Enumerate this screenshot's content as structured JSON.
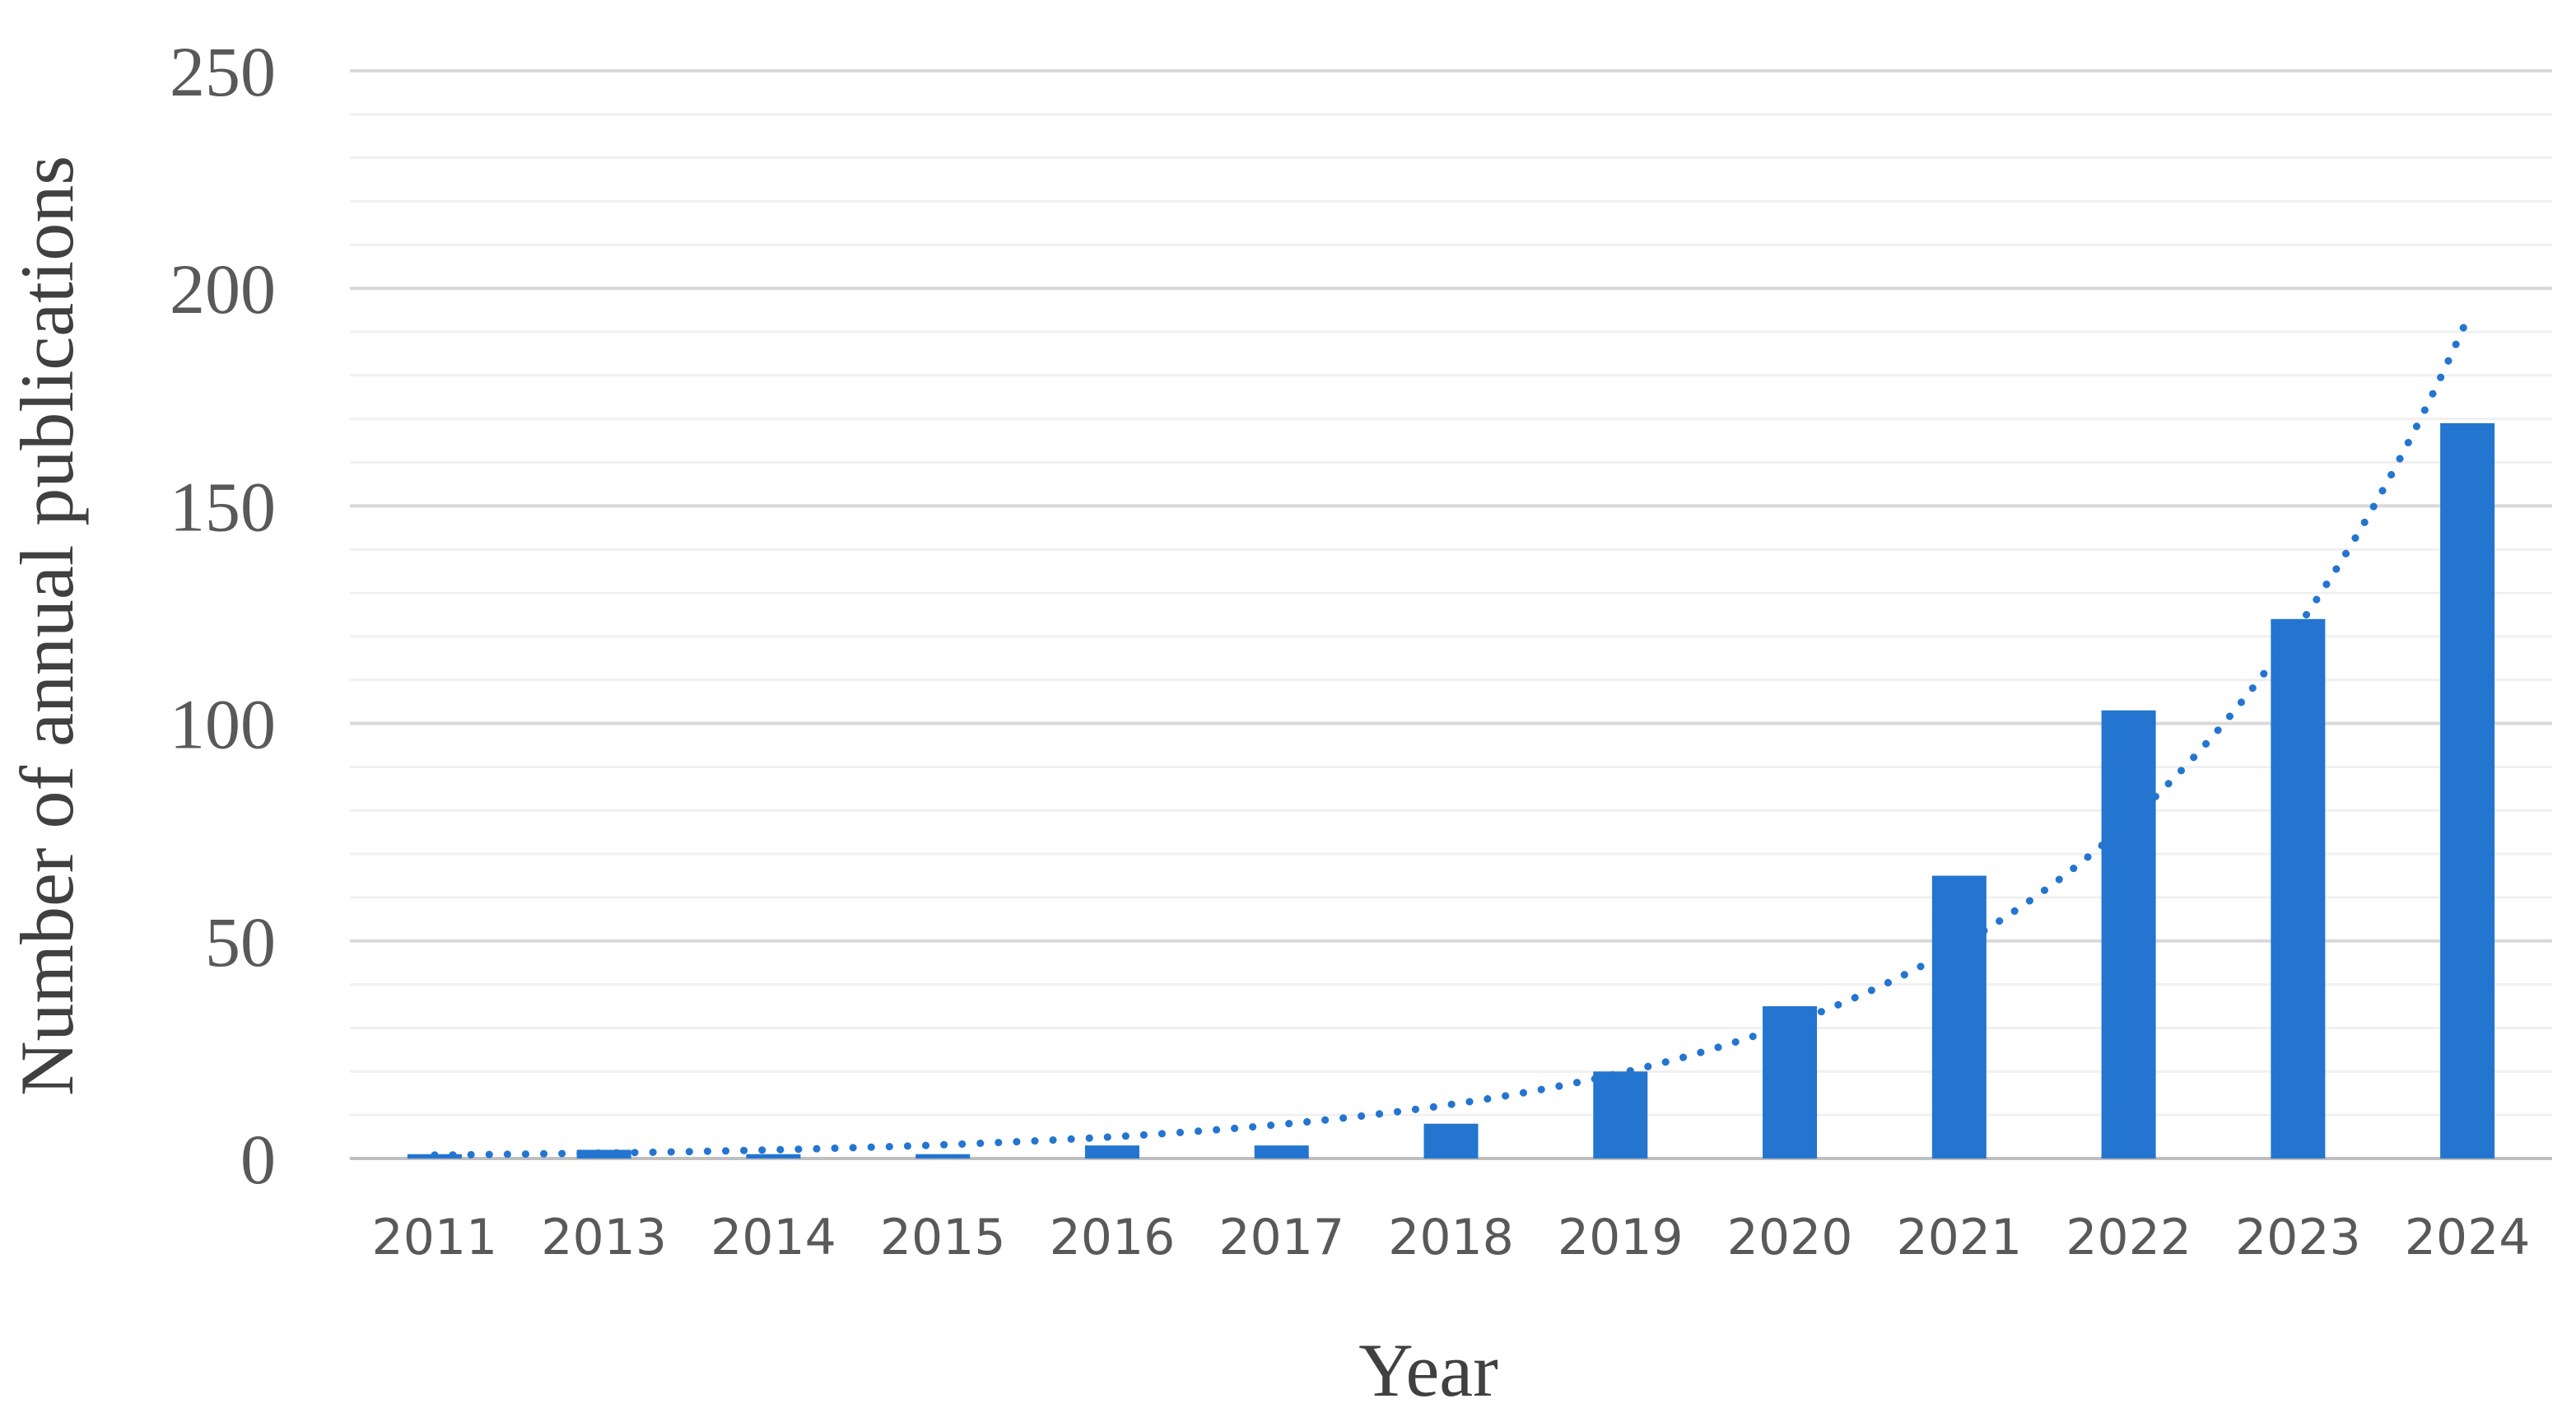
{
  "chart_data": {
    "type": "bar",
    "title": "",
    "xlabel": "Year",
    "ylabel": "Number of annual publications",
    "categories": [
      "2011",
      "2013",
      "2014",
      "2015",
      "2016",
      "2017",
      "2018",
      "2019",
      "2020",
      "2021",
      "2022",
      "2023",
      "2024"
    ],
    "series": [
      {
        "values": [
          1,
          2,
          1,
          1,
          3,
          3,
          8,
          20,
          35,
          65,
          103,
          124,
          169
        ]
      }
    ],
    "trendline": {
      "type": "exponential",
      "style": "dotted",
      "values": [
        0.8,
        1.2,
        1.8,
        2.7,
        4.1,
        6.5,
        10.1,
        15.8,
        26,
        45,
        77,
        122,
        193
      ]
    },
    "ylim": [
      0,
      250
    ],
    "yticks": [
      0,
      50,
      100,
      150,
      200,
      250
    ],
    "grid": true,
    "legend": "none",
    "colors": {
      "bar": "#2375D0",
      "trendline": "#2375D0",
      "major_grid": "#D9D9D9",
      "minor_grid": "#F0F0F0",
      "tick_text": "#595959",
      "title_text": "#404040"
    }
  }
}
